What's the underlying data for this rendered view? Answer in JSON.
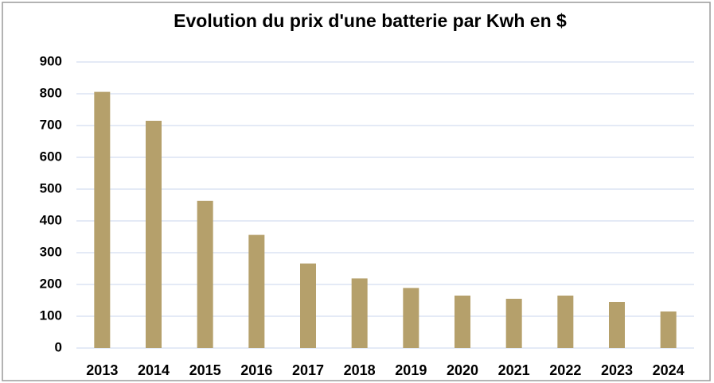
{
  "chart_data": {
    "type": "bar",
    "title": "Evolution du prix d'une batterie par Kwh en $",
    "categories": [
      "2013",
      "2014",
      "2015",
      "2016",
      "2017",
      "2018",
      "2019",
      "2020",
      "2021",
      "2022",
      "2023",
      "2024"
    ],
    "values": [
      806,
      715,
      463,
      356,
      266,
      219,
      189,
      165,
      155,
      165,
      145,
      115
    ],
    "color": "#b5a06b",
    "ylim": [
      0,
      900
    ],
    "yticks": [
      0,
      100,
      200,
      300,
      400,
      500,
      600,
      700,
      800,
      900
    ],
    "grid": true
  }
}
